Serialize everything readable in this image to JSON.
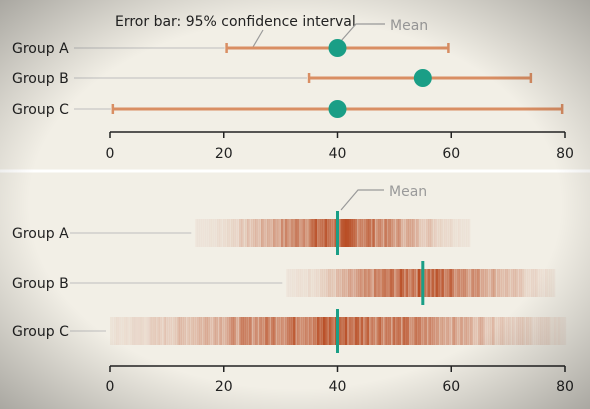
{
  "chart_data": [
    {
      "type": "scatter",
      "annotation_error": "Error bar: 95% confidence interval",
      "annotation_mean": "Mean",
      "categories": [
        "Group A",
        "Group B",
        "Group C"
      ],
      "means": [
        40,
        55,
        40
      ],
      "ci_low": [
        20.5,
        35,
        0.5
      ],
      "ci_high": [
        59.5,
        74,
        79.5
      ],
      "x_ticks": [
        0,
        20,
        40,
        60,
        80
      ],
      "xlim": [
        0,
        80
      ],
      "colors": {
        "bar": "#d98e63",
        "mean": "#1a9e86"
      }
    },
    {
      "type": "heatmap",
      "annotation_mean": "Mean",
      "categories": [
        "Group A",
        "Group B",
        "Group C"
      ],
      "means": [
        40,
        55,
        40
      ],
      "range_low": [
        15,
        31,
        0
      ],
      "range_high": [
        63,
        78,
        80
      ],
      "x_ticks": [
        0,
        20,
        40,
        60,
        80
      ],
      "xlim": [
        0,
        80
      ],
      "colors": {
        "stripe": "#b5441a",
        "mean": "#1a9e86"
      }
    }
  ]
}
